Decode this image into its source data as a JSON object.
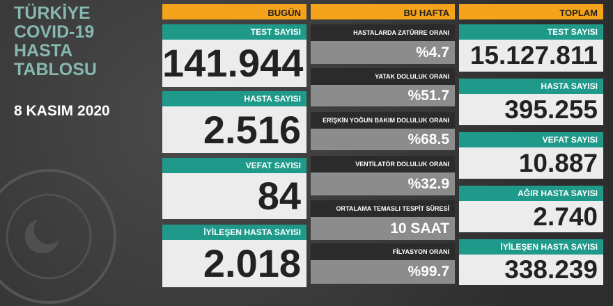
{
  "title": [
    "TÜRKİYE",
    "COVID-19",
    "HASTA",
    "TABLOSU"
  ],
  "date": "8 KASIM 2020",
  "columns": [
    {
      "header": "BUGÜN",
      "cells": [
        {
          "label": "TEST SAYISI",
          "value": "141.944"
        },
        {
          "label": "HASTA SAYISI",
          "value": "2.516"
        },
        {
          "label": "VEFAT SAYISI",
          "value": "84"
        },
        {
          "label": "İYİLEŞEN HASTA SAYISI",
          "value": "2.018"
        }
      ]
    },
    {
      "header": "BU HAFTA",
      "cells": [
        {
          "label": "HASTALARDA ZATÜRRE ORANI",
          "value": "%4.7"
        },
        {
          "label": "YATAK DOLULUK ORANI",
          "value": "%51.7"
        },
        {
          "label": "ERİŞKİN YOĞUN BAKIM DOLULUK ORANI",
          "value": "%68.5"
        },
        {
          "label": "VENTİLATÖR DOLULUK ORANI",
          "value": "%32.9"
        },
        {
          "label": "ORTALAMA TEMASLI TESPİT SÜRESİ",
          "value": "10 SAAT"
        },
        {
          "label": "FİLYASYON ORANI",
          "value": "%99.7"
        }
      ]
    },
    {
      "header": "TOPLAM",
      "cells": [
        {
          "label": "TEST SAYISI",
          "value": "15.127.811"
        },
        {
          "label": "HASTA SAYISI",
          "value": "395.255"
        },
        {
          "label": "VEFAT SAYISI",
          "value": "10.887"
        },
        {
          "label": "AĞIR HASTA SAYISI",
          "value": "2.740"
        },
        {
          "label": "İYİLEŞEN HASTA SAYISI",
          "value": "338.239"
        }
      ]
    }
  ]
}
